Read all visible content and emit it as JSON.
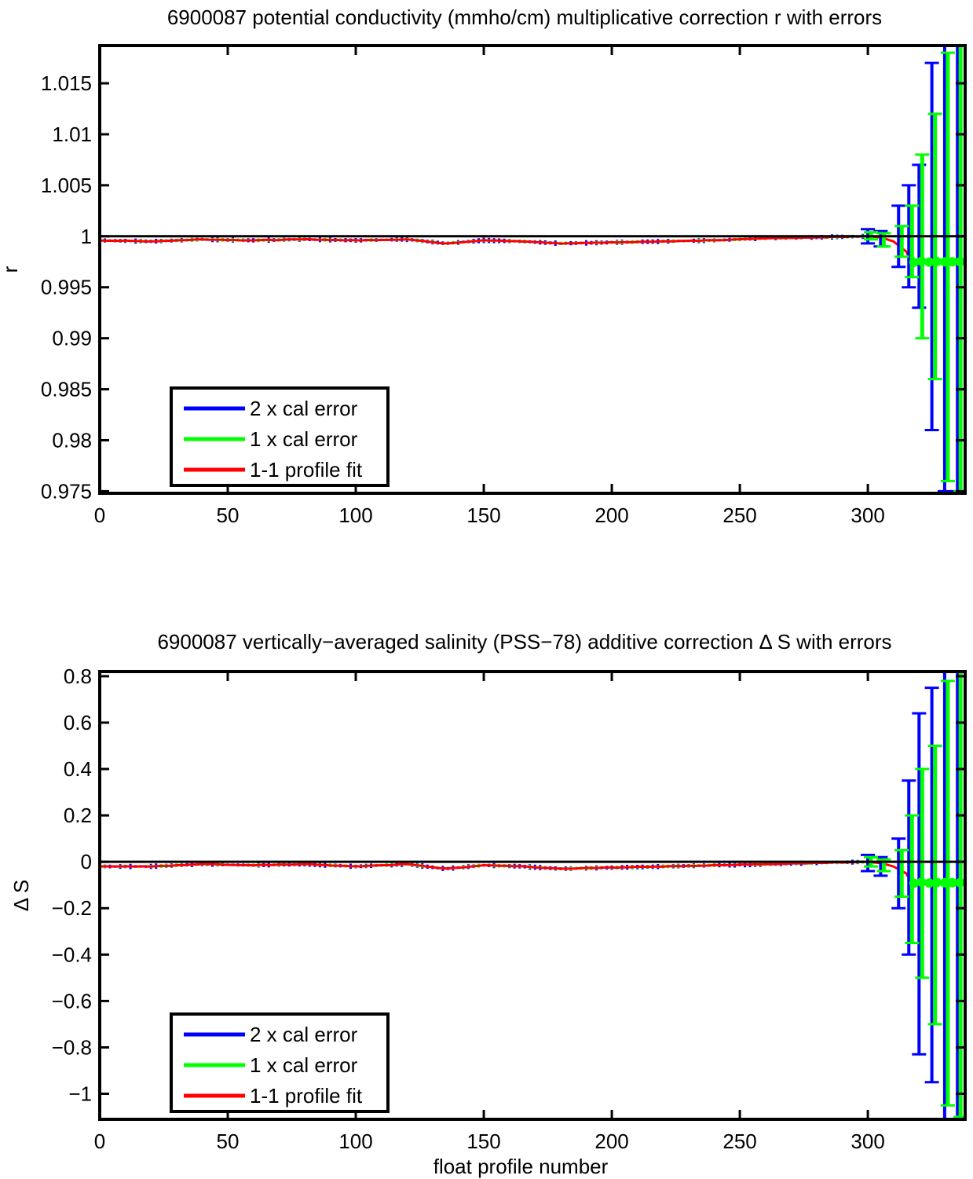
{
  "chart_data": [
    {
      "type": "line",
      "title": "6900087 potential conductivity (mmho/cm) multiplicative correction r with errors",
      "xlabel": "",
      "ylabel": "r",
      "xlim": [
        0,
        338
      ],
      "ylim": [
        0.9748,
        1.0187
      ],
      "xticks": [
        "0",
        "50",
        "100",
        "150",
        "200",
        "250",
        "300"
      ],
      "xtick_values": [
        0,
        50,
        100,
        150,
        200,
        250,
        300
      ],
      "yticks": [
        "0.975",
        "0.98",
        "0.985",
        "0.99",
        "0.995",
        "1",
        "1.005",
        "1.01",
        "1.015"
      ],
      "ytick_values": [
        0.975,
        0.98,
        0.985,
        0.99,
        0.995,
        1.0,
        1.005,
        1.01,
        1.015
      ],
      "grid": false,
      "legend_position": "lower-left",
      "reference_line": 1.0,
      "series": [
        {
          "name": "2 x cal error",
          "color": "#0000ff",
          "x": [
            300,
            305,
            312,
            316,
            320,
            325,
            330,
            335
          ],
          "values": [
            1.0007,
            1.0005,
            1.003,
            1.005,
            1.007,
            1.017,
            1.02,
            1.02
          ],
          "lower": [
            0.9993,
            0.999,
            0.997,
            0.995,
            0.993,
            0.981,
            0.975,
            0.975
          ]
        },
        {
          "name": "1 x cal error",
          "color": "#00ff00",
          "x": [
            300,
            305,
            312,
            316,
            320,
            325,
            330,
            335
          ],
          "values": [
            1.0004,
            1.0003,
            1.001,
            1.003,
            1.008,
            1.012,
            1.018,
            1.02
          ],
          "lower": [
            0.9997,
            0.999,
            0.998,
            0.996,
            0.99,
            0.986,
            0.976,
            0.975
          ]
        },
        {
          "name": "1-1 profile fit",
          "color": "#ff0000",
          "x": [
            0,
            20,
            40,
            60,
            80,
            100,
            120,
            135,
            150,
            165,
            180,
            200,
            220,
            240,
            260,
            280,
            300,
            305,
            310,
            315,
            317
          ],
          "values": [
            0.9996,
            0.9995,
            0.9997,
            0.9996,
            0.9997,
            0.9996,
            0.9997,
            0.9993,
            0.9996,
            0.9995,
            0.9993,
            0.9994,
            0.9995,
            0.9996,
            0.9998,
            0.9999,
            1.0,
            0.9999,
            0.9995,
            0.9985,
            0.9975
          ]
        }
      ]
    },
    {
      "type": "line",
      "title": "6900087 vertically−averaged salinity (PSS−78) additive correction Δ S with errors",
      "xlabel": "float profile number",
      "ylabel": "Δ S",
      "xlim": [
        0,
        338
      ],
      "ylim": [
        -1.11,
        0.82
      ],
      "xticks": [
        "0",
        "50",
        "100",
        "150",
        "200",
        "250",
        "300"
      ],
      "xtick_values": [
        0,
        50,
        100,
        150,
        200,
        250,
        300
      ],
      "yticks": [
        "−1",
        "−0.8",
        "−0.6",
        "−0.4",
        "−0.2",
        "0",
        "0.2",
        "0.4",
        "0.6",
        "0.8"
      ],
      "ytick_values": [
        -1,
        -0.8,
        -0.6,
        -0.4,
        -0.2,
        0,
        0.2,
        0.4,
        0.6,
        0.8
      ],
      "grid": false,
      "legend_position": "lower-left",
      "reference_line": 0,
      "series": [
        {
          "name": "2 x cal error",
          "color": "#0000ff",
          "x": [
            300,
            305,
            312,
            316,
            320,
            325,
            330,
            335
          ],
          "values": [
            0.03,
            0.02,
            0.1,
            0.35,
            0.64,
            0.75,
            0.82,
            0.82
          ],
          "lower": [
            -0.04,
            -0.06,
            -0.2,
            -0.4,
            -0.83,
            -0.95,
            -1.11,
            -1.11
          ]
        },
        {
          "name": "1 x cal error",
          "color": "#00ff00",
          "x": [
            300,
            305,
            312,
            316,
            320,
            325,
            330,
            335
          ],
          "values": [
            0.02,
            0.01,
            0.05,
            0.2,
            0.4,
            0.5,
            0.78,
            0.82
          ],
          "lower": [
            -0.02,
            -0.04,
            -0.15,
            -0.35,
            -0.5,
            -0.7,
            -1.05,
            -1.1
          ]
        },
        {
          "name": "1-1 profile fit",
          "color": "#ff0000",
          "x": [
            0,
            20,
            40,
            60,
            80,
            100,
            120,
            135,
            150,
            165,
            180,
            200,
            220,
            240,
            260,
            280,
            300,
            305,
            310,
            315,
            317
          ],
          "values": [
            -0.02,
            -0.02,
            -0.01,
            -0.015,
            -0.01,
            -0.02,
            -0.01,
            -0.03,
            -0.015,
            -0.02,
            -0.03,
            -0.025,
            -0.02,
            -0.015,
            -0.01,
            -0.005,
            0.0,
            -0.005,
            -0.02,
            -0.05,
            -0.09
          ]
        }
      ]
    }
  ]
}
